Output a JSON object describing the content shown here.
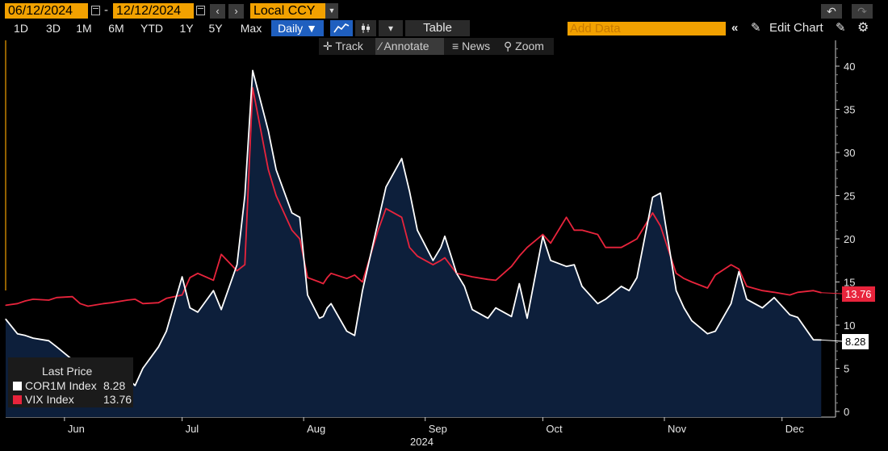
{
  "toolbar": {
    "start_date": "06/12/2024",
    "date_separator": "-",
    "end_date": "12/12/2024",
    "currency": "Local CCY",
    "ranges": [
      "1D",
      "3D",
      "1M",
      "6M",
      "YTD",
      "1Y",
      "5Y",
      "Max"
    ],
    "frequency": "Daily ▼",
    "table_label": "Table",
    "add_data_placeholder": "Add Data",
    "edit_chart_label": "Edit Chart",
    "sub_tools": [
      "Track",
      "Annotate",
      "News",
      "Zoom"
    ]
  },
  "legend": {
    "title": "Last Price",
    "items": [
      {
        "name": "COR1M Index",
        "value": "8.28",
        "color": "#ffffff"
      },
      {
        "name": "VIX Index",
        "value": "13.76",
        "color": "#e8243c"
      }
    ]
  },
  "last_values": {
    "vix": "13.76",
    "cor1m": "8.28"
  },
  "colors": {
    "accent": "#f2a100",
    "vix": "#e8243c",
    "cor1m": "#ffffff",
    "area_fill": "#0d1f3b",
    "background": "#000000"
  },
  "chart_data": {
    "type": "area",
    "year_label": "2024",
    "x_tick_labels": [
      "Jun",
      "Jul",
      "Aug",
      "Sep",
      "Oct",
      "Nov",
      "Dec"
    ],
    "x_tick_dates": [
      "2024-06-01",
      "2024-07-01",
      "2024-08-01",
      "2024-09-01",
      "2024-10-01",
      "2024-11-01",
      "2024-12-01"
    ],
    "y_ticks": [
      0,
      5,
      10,
      15,
      20,
      25,
      30,
      35,
      40
    ],
    "ylim": [
      0,
      42
    ],
    "grid": false,
    "legend_position": "bottom-left",
    "x": [
      "2024-05-17",
      "2024-05-20",
      "2024-05-22",
      "2024-05-24",
      "2024-05-28",
      "2024-05-30",
      "2024-06-03",
      "2024-06-05",
      "2024-06-07",
      "2024-06-11",
      "2024-06-13",
      "2024-06-17",
      "2024-06-19",
      "2024-06-21",
      "2024-06-25",
      "2024-06-27",
      "2024-07-01",
      "2024-07-03",
      "2024-07-05",
      "2024-07-09",
      "2024-07-11",
      "2024-07-15",
      "2024-07-17",
      "2024-07-19",
      "2024-07-23",
      "2024-07-25",
      "2024-07-29",
      "2024-07-31",
      "2024-08-02",
      "2024-08-05",
      "2024-08-06",
      "2024-08-07",
      "2024-08-08",
      "2024-08-12",
      "2024-08-14",
      "2024-08-16",
      "2024-08-20",
      "2024-08-22",
      "2024-08-26",
      "2024-08-28",
      "2024-08-30",
      "2024-09-03",
      "2024-09-05",
      "2024-09-06",
      "2024-09-09",
      "2024-09-11",
      "2024-09-13",
      "2024-09-17",
      "2024-09-19",
      "2024-09-23",
      "2024-09-25",
      "2024-09-27",
      "2024-10-01",
      "2024-10-03",
      "2024-10-07",
      "2024-10-09",
      "2024-10-11",
      "2024-10-15",
      "2024-10-17",
      "2024-10-21",
      "2024-10-23",
      "2024-10-25",
      "2024-10-29",
      "2024-10-31",
      "2024-11-04",
      "2024-11-06",
      "2024-11-08",
      "2024-11-12",
      "2024-11-14",
      "2024-11-18",
      "2024-11-20",
      "2024-11-22",
      "2024-11-26",
      "2024-11-29",
      "2024-12-03",
      "2024-12-05",
      "2024-12-09",
      "2024-12-11"
    ],
    "series": [
      {
        "name": "COR1M Index",
        "values": [
          10.7,
          9.0,
          8.8,
          8.5,
          8.2,
          7.5,
          6.0,
          5.0,
          4.5,
          4.2,
          4.0,
          3.9,
          3.0,
          5.0,
          7.5,
          9.3,
          15.6,
          12.0,
          11.5,
          14.0,
          11.8,
          17.0,
          25.0,
          39.5,
          32.5,
          28.0,
          23.0,
          22.5,
          13.5,
          10.8,
          11.0,
          12.0,
          12.5,
          9.3,
          8.8,
          14.0,
          22.0,
          26.0,
          29.3,
          25.5,
          21.0,
          17.5,
          19.0,
          20.3,
          16.0,
          14.5,
          11.8,
          10.8,
          12.0,
          11.0,
          14.8,
          10.8,
          20.3,
          17.5,
          16.8,
          17.0,
          14.5,
          12.5,
          13.0,
          14.5,
          14.0,
          15.5,
          24.8,
          25.3,
          14.0,
          12.0,
          10.5,
          9.0,
          9.3,
          12.5,
          16.2,
          13.0,
          12.0,
          13.2,
          11.2,
          10.9,
          8.3,
          8.28
        ]
      },
      {
        "name": "VIX Index",
        "values": [
          12.3,
          12.5,
          12.8,
          13.0,
          12.9,
          13.2,
          13.3,
          12.5,
          12.2,
          12.5,
          12.6,
          12.9,
          13.0,
          12.5,
          12.6,
          13.1,
          13.5,
          15.5,
          16.0,
          15.2,
          18.2,
          16.3,
          17.0,
          37.5,
          28.0,
          25.0,
          21.0,
          20.0,
          15.5,
          15.0,
          14.8,
          15.5,
          16.0,
          15.4,
          15.8,
          15.0,
          21.0,
          23.5,
          22.5,
          19.0,
          18.0,
          17.0,
          17.5,
          17.8,
          16.0,
          15.8,
          15.6,
          15.3,
          15.2,
          16.8,
          18.0,
          19.0,
          20.5,
          19.5,
          22.5,
          21.0,
          21.0,
          20.5,
          19.0,
          19.0,
          19.5,
          20.0,
          23.0,
          21.5,
          16.0,
          15.4,
          15.0,
          14.3,
          15.8,
          17.0,
          16.5,
          14.5,
          14.0,
          13.8,
          13.5,
          13.8,
          14.0,
          13.76
        ]
      }
    ]
  }
}
